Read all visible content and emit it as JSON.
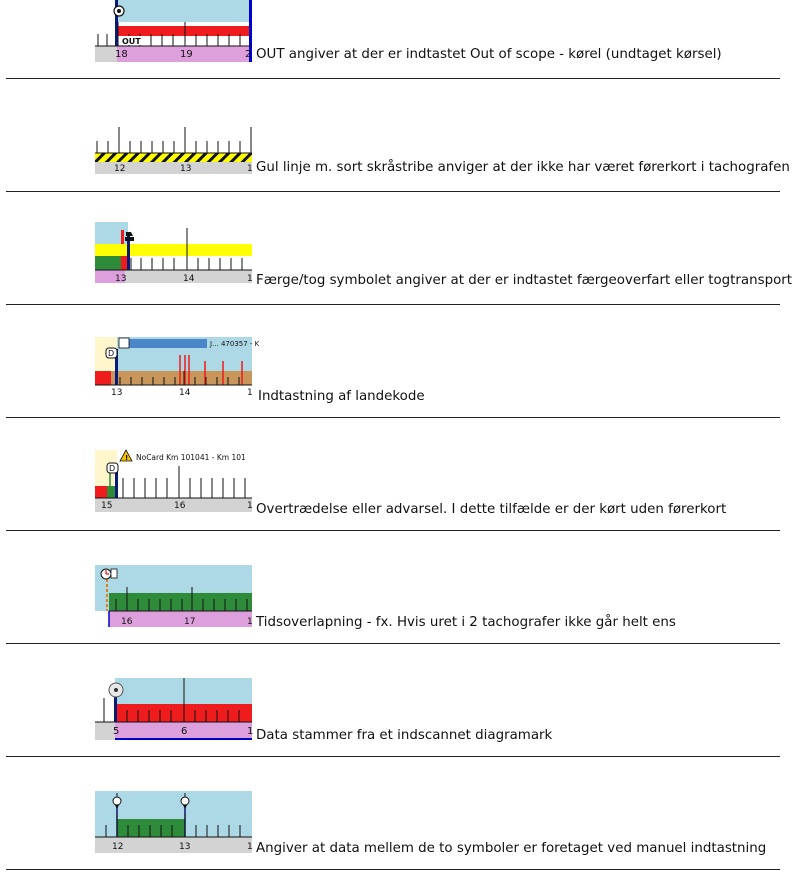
{
  "rows": [
    {
      "desc": "OUT angiver at der er indtastet Out of scope - kørel (undtaget kørsel)",
      "ticks": [
        "18",
        "19",
        "2"
      ],
      "badge": "OUT"
    },
    {
      "desc": "Gul linje m. sort skråstribe anviger at der ikke har været førerkort i tachografen",
      "ticks": [
        "12",
        "13",
        "1"
      ]
    },
    {
      "desc": "Færge/tog symbolet angiver at der er indtastet færgeoverfart eller togtransport",
      "ticks": [
        "13",
        "14",
        "1"
      ]
    },
    {
      "desc": "Indtastning af landekode",
      "ticks": [
        "13",
        "14",
        "1"
      ],
      "banner": "J... 470357 - K",
      "country": "D"
    },
    {
      "desc": "Overtrædelse eller advarsel. I dette tilfælde er der kørt uden førerkort",
      "ticks": [
        "15",
        "16",
        "1"
      ],
      "warning": "NoCard Km 101041 - Km 101",
      "country": "D"
    },
    {
      "desc": "Tidsoverlapning - fx. Hvis uret i 2 tachografer ikke går helt ens",
      "ticks": [
        "16",
        "17",
        "1"
      ]
    },
    {
      "desc": "Data stammer fra et indscannet diagramark",
      "ticks": [
        "5",
        "6",
        "1"
      ]
    },
    {
      "desc": "Angiver at data mellem de to symboler er foretaget ved manuel indtastning",
      "ticks": [
        "12",
        "13",
        "1"
      ]
    }
  ],
  "colors": {
    "sky": "#add8e6",
    "red": "#ee1c1c",
    "green": "#2e8b3a",
    "violet": "#dda0dd",
    "yellow": "#ffff00",
    "brown": "#c8955a",
    "cream": "#fff6cc",
    "ruler": "#d3d3d3",
    "navy": "#0a1a7a",
    "blue": "#0000cc"
  }
}
